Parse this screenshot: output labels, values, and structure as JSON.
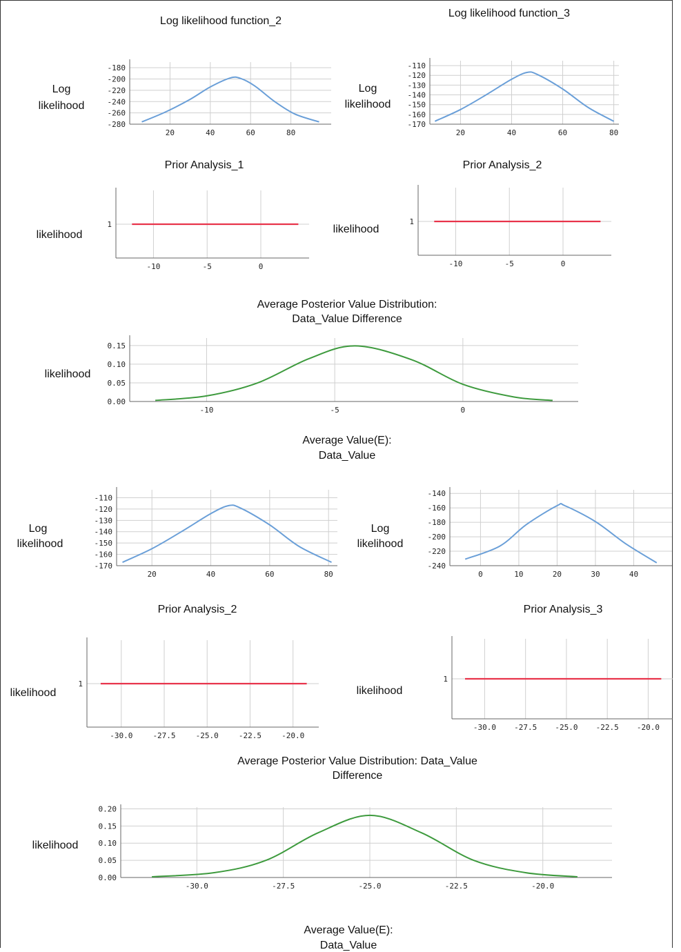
{
  "titles": {
    "llf2": "Log likelihood function_2",
    "llf3": "Log likelihood function_3",
    "prior1": "Prior Analysis_1",
    "prior2a": "Prior Analysis_2",
    "post1_l1": "Average Posterior Value Distribution:",
    "post1_l2": "Data_Value Difference",
    "avg1_l1": "Average Value(E):",
    "avg1_l2": "Data_Value",
    "prior2b": "Prior Analysis_2",
    "prior3": "Prior Analysis_3",
    "post2_l1": "Average Posterior Value Distribution: Data_Value",
    "post2_l2": "Difference",
    "avg2_l1": "Average Value(E):",
    "avg2_l2": "Data_Value"
  },
  "ylabels": {
    "log": "Log",
    "likelihood": "likelihood"
  },
  "colors": {
    "blue": "#6a9fd8",
    "red": "#e8334a",
    "green": "#3d9a3d",
    "grid": "#cfcfcf",
    "axis": "#666666"
  },
  "chart_data": [
    {
      "id": "c1",
      "type": "line",
      "title": "Log likelihood function_2",
      "ylabel": "Log likelihood",
      "xlim": [
        0,
        100
      ],
      "ylim": [
        -280,
        -170
      ],
      "xticks": [
        20,
        40,
        60,
        80
      ],
      "yticks": [
        -280,
        -260,
        -240,
        -220,
        -200,
        -180
      ],
      "series": [
        {
          "color": "#6a9fd8",
          "points": [
            [
              6,
              -276
            ],
            [
              18,
              -258
            ],
            [
              30,
              -236
            ],
            [
              40,
              -214
            ],
            [
              50,
              -198
            ],
            [
              55,
              -199
            ],
            [
              62,
              -212
            ],
            [
              72,
              -240
            ],
            [
              82,
              -262
            ],
            [
              94,
              -276
            ]
          ]
        }
      ]
    },
    {
      "id": "c2",
      "type": "line",
      "title": "Log likelihood function_3",
      "ylabel": "Log likelihood",
      "xlim": [
        8,
        82
      ],
      "ylim": [
        -170,
        -105
      ],
      "xticks": [
        20,
        40,
        60,
        80
      ],
      "yticks": [
        -170,
        -160,
        -150,
        -140,
        -130,
        -120,
        -110
      ],
      "series": [
        {
          "color": "#6a9fd8",
          "points": [
            [
              10,
              -167
            ],
            [
              20,
              -155
            ],
            [
              30,
              -140
            ],
            [
              40,
              -124
            ],
            [
              46,
              -117
            ],
            [
              50,
              -119
            ],
            [
              60,
              -134
            ],
            [
              70,
              -153
            ],
            [
              80,
              -167
            ]
          ]
        }
      ]
    },
    {
      "id": "c3",
      "type": "line",
      "title": "Prior Analysis_1",
      "ylabel": "likelihood",
      "xlim": [
        -13.5,
        4.5
      ],
      "ylim": [
        0,
        2
      ],
      "xticks": [
        -10,
        -5,
        0
      ],
      "yticks": [
        1
      ],
      "series": [
        {
          "color": "#e8334a",
          "points": [
            [
              -12,
              1
            ],
            [
              3.5,
              1
            ]
          ]
        }
      ]
    },
    {
      "id": "c4",
      "type": "line",
      "title": "Prior Analysis_2",
      "ylabel": "likelihood",
      "xlim": [
        -13.5,
        4.5
      ],
      "ylim": [
        0,
        2
      ],
      "xticks": [
        -10,
        -5,
        0
      ],
      "yticks": [
        1
      ],
      "series": [
        {
          "color": "#e8334a",
          "points": [
            [
              -12,
              1
            ],
            [
              3.5,
              1
            ]
          ]
        }
      ]
    },
    {
      "id": "c5",
      "type": "line",
      "title": "Average Posterior Value Distribution: Data_Value Difference",
      "ylabel": "likelihood",
      "xlim": [
        -13,
        4.5
      ],
      "ylim": [
        0,
        0.17
      ],
      "xticks": [
        -10,
        -5,
        0
      ],
      "yticks": [
        0.0,
        0.05,
        0.1,
        0.15
      ],
      "ydecimals": 2,
      "series": [
        {
          "color": "#3d9a3d",
          "points": [
            [
              -12,
              0.003
            ],
            [
              -10,
              0.015
            ],
            [
              -8,
              0.05
            ],
            [
              -6,
              0.115
            ],
            [
              -4.2,
              0.149
            ],
            [
              -2,
              0.112
            ],
            [
              0,
              0.046
            ],
            [
              2,
              0.012
            ],
            [
              3.5,
              0.003
            ]
          ]
        }
      ]
    },
    {
      "id": "c6",
      "type": "line",
      "title": "Average Value(E): Data_Value",
      "ylabel": "Log likelihood",
      "xlim": [
        8,
        83
      ],
      "ylim": [
        -170,
        -103
      ],
      "xticks": [
        20,
        40,
        60,
        80
      ],
      "yticks": [
        -170,
        -160,
        -150,
        -140,
        -130,
        -120,
        -110
      ],
      "series": [
        {
          "color": "#6a9fd8",
          "points": [
            [
              10,
              -167
            ],
            [
              20,
              -155
            ],
            [
              30,
              -140
            ],
            [
              40,
              -124
            ],
            [
              46,
              -117
            ],
            [
              50,
              -119
            ],
            [
              60,
              -134
            ],
            [
              70,
              -153
            ],
            [
              81,
              -167
            ]
          ]
        }
      ]
    },
    {
      "id": "c7",
      "type": "line",
      "title": "",
      "ylabel": "Log likelihood",
      "xlim": [
        -8,
        50
      ],
      "ylim": [
        -240,
        -135
      ],
      "xticks": [
        0,
        10,
        20,
        30,
        40
      ],
      "yticks": [
        -240,
        -220,
        -200,
        -180,
        -160,
        -140
      ],
      "series": [
        {
          "color": "#6a9fd8",
          "points": [
            [
              -4,
              -231
            ],
            [
              5,
              -213
            ],
            [
              12,
              -183
            ],
            [
              20,
              -157
            ],
            [
              22,
              -157
            ],
            [
              30,
              -179
            ],
            [
              38,
              -210
            ],
            [
              46,
              -236
            ]
          ]
        }
      ]
    },
    {
      "id": "c8",
      "type": "line",
      "title": "Prior Analysis_2",
      "ylabel": "likelihood",
      "xlim": [
        -32,
        -18.5
      ],
      "ylim": [
        0,
        2
      ],
      "xticks": [
        -30.0,
        -27.5,
        -25.0,
        -22.5,
        -20.0
      ],
      "yticks": [
        1
      ],
      "xdecimals": 1,
      "series": [
        {
          "color": "#e8334a",
          "points": [
            [
              -31.2,
              1
            ],
            [
              -19.2,
              1
            ]
          ]
        }
      ]
    },
    {
      "id": "c9",
      "type": "line",
      "title": "Prior Analysis_3",
      "ylabel": "likelihood",
      "xlim": [
        -32,
        -18.5
      ],
      "ylim": [
        0,
        2
      ],
      "xticks": [
        -30.0,
        -27.5,
        -25.0,
        -22.5,
        -20.0
      ],
      "yticks": [
        1
      ],
      "xdecimals": 1,
      "series": [
        {
          "color": "#e8334a",
          "points": [
            [
              -31.2,
              1
            ],
            [
              -19.2,
              1
            ]
          ]
        }
      ]
    },
    {
      "id": "c10",
      "type": "line",
      "title": "Average Posterior Value Distribution: Data_Value Difference",
      "ylabel": "likelihood",
      "xlim": [
        -32.2,
        -18
      ],
      "ylim": [
        0,
        0.205
      ],
      "xticks": [
        -30.0,
        -27.5,
        -25.0,
        -22.5,
        -20.0
      ],
      "yticks": [
        0.0,
        0.05,
        0.1,
        0.15,
        0.2
      ],
      "xdecimals": 1,
      "ydecimals": 2,
      "series": [
        {
          "color": "#3d9a3d",
          "points": [
            [
              -31.3,
              0.002
            ],
            [
              -29.5,
              0.014
            ],
            [
              -28,
              0.05
            ],
            [
              -26.5,
              0.13
            ],
            [
              -25,
              0.181
            ],
            [
              -23.5,
              0.13
            ],
            [
              -22,
              0.05
            ],
            [
              -20.5,
              0.014
            ],
            [
              -19,
              0.002
            ]
          ]
        }
      ]
    }
  ]
}
